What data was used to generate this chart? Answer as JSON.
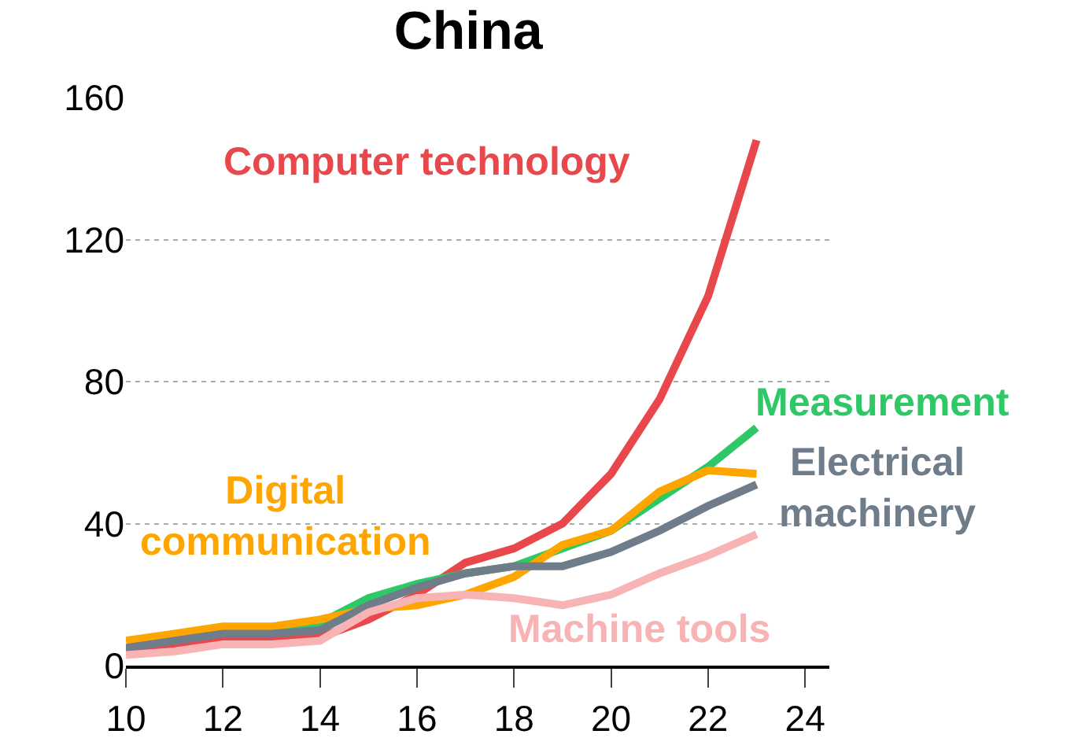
{
  "chart_data": {
    "type": "line",
    "title": "China",
    "x": [
      10,
      11,
      12,
      13,
      14,
      15,
      16,
      17,
      18,
      19,
      20,
      21,
      22,
      23
    ],
    "series": [
      {
        "name": "Computer technology",
        "color": "#e8474c",
        "values": [
          4,
          6,
          8,
          8,
          8,
          13,
          20,
          29,
          33,
          40,
          54,
          75,
          104,
          148
        ]
      },
      {
        "name": "Measurement",
        "color": "#2ec866",
        "values": [
          null,
          null,
          10,
          10,
          12,
          19,
          23,
          26,
          28,
          33,
          38,
          47,
          56,
          67
        ]
      },
      {
        "name": "Digital communication",
        "color": "#ffa500",
        "values": [
          7,
          9,
          11,
          11,
          13,
          16,
          17,
          20,
          25,
          34,
          38,
          49,
          55,
          54
        ]
      },
      {
        "name": "Electrical machinery",
        "color": "#6f7d8a",
        "values": [
          5,
          7,
          9,
          9,
          10,
          17,
          22,
          26,
          28,
          28,
          32,
          38,
          45,
          51
        ]
      },
      {
        "name": "Machine tools",
        "color": "#f8b3b5",
        "values": [
          3,
          4,
          6,
          6,
          7,
          15,
          19,
          20,
          19,
          17,
          20,
          26,
          31,
          37
        ]
      }
    ],
    "xlim": [
      10,
      24.5
    ],
    "xticks": [
      10,
      12,
      14,
      16,
      18,
      20,
      22,
      24
    ],
    "ylim": [
      0,
      160
    ],
    "yticks": [
      0,
      40,
      80,
      120,
      160
    ],
    "grid": "y",
    "legend": false,
    "marker": "none",
    "line_style": "solid"
  }
}
